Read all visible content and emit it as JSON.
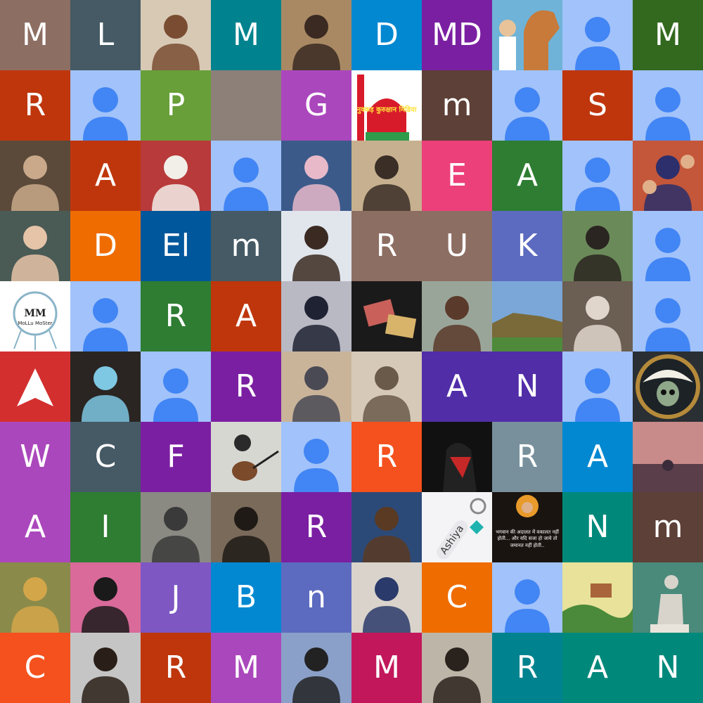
{
  "grid": {
    "tiles": [
      {
        "kind": "letter",
        "text": "M",
        "bg": "#8d6e63"
      },
      {
        "kind": "letter",
        "text": "L",
        "bg": "#455a64"
      },
      {
        "kind": "photo",
        "subject": "person",
        "bg": "#d8c9b5",
        "accent": "#7a4d33"
      },
      {
        "kind": "letter",
        "text": "M",
        "bg": "#00838f"
      },
      {
        "kind": "photo",
        "subject": "person",
        "bg": "#a98963",
        "accent": "#3a2a22"
      },
      {
        "kind": "letter",
        "text": "D",
        "bg": "#0288d1"
      },
      {
        "kind": "letter",
        "text": "MD",
        "bg": "#7b1fa2"
      },
      {
        "kind": "photo",
        "subject": "horse",
        "bg": "#6fb3d8",
        "accent": "#c77a3a"
      },
      {
        "kind": "placeholder",
        "bg": "#a1c2fa",
        "fg": "#4285f4"
      },
      {
        "kind": "letter",
        "text": "M",
        "bg": "#33691e"
      },
      {
        "kind": "letter",
        "text": "R",
        "bg": "#bf360c"
      },
      {
        "kind": "placeholder",
        "bg": "#a1c2fa",
        "fg": "#4285f4"
      },
      {
        "kind": "letter",
        "text": "P",
        "bg": "#689f38"
      },
      {
        "kind": "blank",
        "bg": "#8d8079"
      },
      {
        "kind": "letter",
        "text": "G",
        "bg": "#ab47bc"
      },
      {
        "kind": "logo",
        "text": "नुक्कड़ कुरुक्षान मिडिया",
        "bg": "#ffffff",
        "accent": "#d81b2a"
      },
      {
        "kind": "letter",
        "text": "m",
        "bg": "#5d4037"
      },
      {
        "kind": "placeholder",
        "bg": "#a1c2fa",
        "fg": "#4285f4"
      },
      {
        "kind": "letter",
        "text": "S",
        "bg": "#bf360c"
      },
      {
        "kind": "placeholder",
        "bg": "#a1c2fa",
        "fg": "#4285f4"
      },
      {
        "kind": "photo",
        "subject": "person",
        "bg": "#5b4a3a",
        "accent": "#c9a98a"
      },
      {
        "kind": "letter",
        "text": "A",
        "bg": "#bf360c"
      },
      {
        "kind": "photo",
        "subject": "person",
        "bg": "#b83a3a",
        "accent": "#f2efe9"
      },
      {
        "kind": "placeholder",
        "bg": "#a1c2fa",
        "fg": "#4285f4"
      },
      {
        "kind": "photo",
        "subject": "person",
        "bg": "#3b5a8a",
        "accent": "#e8b9c9"
      },
      {
        "kind": "photo",
        "subject": "person",
        "bg": "#c7b08f",
        "accent": "#3a2e26"
      },
      {
        "kind": "letter",
        "text": "E",
        "bg": "#ec407a"
      },
      {
        "kind": "letter",
        "text": "A",
        "bg": "#2e7d32"
      },
      {
        "kind": "placeholder",
        "bg": "#a1c2fa",
        "fg": "#4285f4"
      },
      {
        "kind": "photo",
        "subject": "people",
        "bg": "#c4563a",
        "accent": "#2c2f6b"
      },
      {
        "kind": "photo",
        "subject": "person",
        "bg": "#4a5a55",
        "accent": "#e6c4a8"
      },
      {
        "kind": "letter",
        "text": "D",
        "bg": "#ef6c00"
      },
      {
        "kind": "letter",
        "text": "El",
        "bg": "#01579b"
      },
      {
        "kind": "letter",
        "text": "m",
        "bg": "#455a64"
      },
      {
        "kind": "photo",
        "subject": "person",
        "bg": "#e0e6ec",
        "accent": "#3a2a22"
      },
      {
        "kind": "letter",
        "text": "R",
        "bg": "#8d6e63"
      },
      {
        "kind": "letter",
        "text": "U",
        "bg": "#8d6e63"
      },
      {
        "kind": "letter",
        "text": "K",
        "bg": "#5c6bc0"
      },
      {
        "kind": "photo",
        "subject": "person",
        "bg": "#6b8a5a",
        "accent": "#2a2520"
      },
      {
        "kind": "placeholder",
        "bg": "#a1c2fa",
        "fg": "#4285f4"
      },
      {
        "kind": "monogram",
        "text": "MM",
        "sub": "MoLLu MoSter",
        "bg": "#ffffff",
        "accent": "#8ab4c8"
      },
      {
        "kind": "placeholder",
        "bg": "#a1c2fa",
        "fg": "#4285f4"
      },
      {
        "kind": "letter",
        "text": "R",
        "bg": "#2e7d32"
      },
      {
        "kind": "letter",
        "text": "A",
        "bg": "#bf360c"
      },
      {
        "kind": "photo",
        "subject": "person",
        "bg": "#b9b9c4",
        "accent": "#1f2233"
      },
      {
        "kind": "photo",
        "subject": "banknotes",
        "bg": "#1a1a1a",
        "accent": "#c9605a"
      },
      {
        "kind": "photo",
        "subject": "person",
        "bg": "#9aa59a",
        "accent": "#5a3a2a"
      },
      {
        "kind": "photo",
        "subject": "ruins",
        "bg": "#7aa7d8",
        "accent": "#7a6a3a"
      },
      {
        "kind": "photo",
        "subject": "person",
        "bg": "#6b5e52",
        "accent": "#e0d6cc"
      },
      {
        "kind": "placeholder",
        "bg": "#a1c2fa",
        "fg": "#4285f4"
      },
      {
        "kind": "arrow",
        "bg": "#d32f2f",
        "fg": "#ffffff"
      },
      {
        "kind": "photo",
        "subject": "person",
        "bg": "#2a2522",
        "accent": "#7ec8e3"
      },
      {
        "kind": "placeholder",
        "bg": "#a1c2fa",
        "fg": "#4285f4"
      },
      {
        "kind": "letter",
        "text": "R",
        "bg": "#7b1fa2"
      },
      {
        "kind": "photo",
        "subject": "person",
        "bg": "#c9b49a",
        "accent": "#4a4a55"
      },
      {
        "kind": "photo",
        "subject": "person",
        "bg": "#d6c9b8",
        "accent": "#6a5a4a"
      },
      {
        "kind": "letter",
        "text": "A",
        "bg": "#512da8"
      },
      {
        "kind": "letter",
        "text": "N",
        "bg": "#512da8"
      },
      {
        "kind": "placeholder",
        "bg": "#a1c2fa",
        "fg": "#4285f4"
      },
      {
        "kind": "pirate",
        "bg": "#2a2f33",
        "accent": "#b58a3a"
      },
      {
        "kind": "letter",
        "text": "W",
        "bg": "#ab47bc"
      },
      {
        "kind": "letter",
        "text": "C",
        "bg": "#455a64"
      },
      {
        "kind": "letter",
        "text": "F",
        "bg": "#7b1fa2"
      },
      {
        "kind": "photo",
        "subject": "guitar",
        "bg": "#d7d7d2",
        "accent": "#2a2a2a"
      },
      {
        "kind": "placeholder",
        "bg": "#a1c2fa",
        "fg": "#4285f4"
      },
      {
        "kind": "letter",
        "text": "R",
        "bg": "#f4511e"
      },
      {
        "kind": "photo",
        "subject": "spider",
        "bg": "#111111",
        "accent": "#c62828"
      },
      {
        "kind": "letter",
        "text": "R",
        "bg": "#78909c"
      },
      {
        "kind": "letter",
        "text": "A",
        "bg": "#0288d1"
      },
      {
        "kind": "photo",
        "subject": "sunset",
        "bg": "#c98a8a",
        "accent": "#3a2c3a"
      },
      {
        "kind": "letter",
        "text": "A",
        "bg": "#ab47bc"
      },
      {
        "kind": "letter",
        "text": "I",
        "bg": "#2e7d32"
      },
      {
        "kind": "photo",
        "subject": "person",
        "bg": "#8a8a82",
        "accent": "#3a3a3a"
      },
      {
        "kind": "photo",
        "subject": "person",
        "bg": "#7a6a5a",
        "accent": "#1f1a16"
      },
      {
        "kind": "letter",
        "text": "R",
        "bg": "#7b1fa2"
      },
      {
        "kind": "photo",
        "subject": "person",
        "bg": "#2c4a78",
        "accent": "#5a3a22"
      },
      {
        "kind": "tag",
        "text": "Ashiya",
        "bg": "#f4f4f6",
        "accent": "#1fb3b0"
      },
      {
        "kind": "quote",
        "text": "भगवान की अदालत में वकालत नहीं होती... और यदि सजा हो जाये तो जमानत नहीं होती..",
        "bg": "#1a1410",
        "accent": "#e89a2a"
      },
      {
        "kind": "letter",
        "text": "N",
        "bg": "#00897b"
      },
      {
        "kind": "letter",
        "text": "m",
        "bg": "#5d4037"
      },
      {
        "kind": "photo",
        "subject": "person",
        "bg": "#8a8a4a",
        "accent": "#d4a64a"
      },
      {
        "kind": "photo",
        "subject": "person",
        "bg": "#d96a9a",
        "accent": "#1a1a1a"
      },
      {
        "kind": "letter",
        "text": "J",
        "bg": "#7e57c2"
      },
      {
        "kind": "letter",
        "text": "B",
        "bg": "#0288d1"
      },
      {
        "kind": "letter",
        "text": "n",
        "bg": "#5c6bc0"
      },
      {
        "kind": "photo",
        "subject": "person",
        "bg": "#d9d3cb",
        "accent": "#2a3a6a"
      },
      {
        "kind": "letter",
        "text": "C",
        "bg": "#ef6c00"
      },
      {
        "kind": "placeholder",
        "bg": "#a1c2fa",
        "fg": "#4285f4"
      },
      {
        "kind": "photo",
        "subject": "village",
        "bg": "#e8e29a",
        "accent": "#4a8a3a"
      },
      {
        "kind": "photo",
        "subject": "statue",
        "bg": "#4a8a7a",
        "accent": "#d8d4cc"
      },
      {
        "kind": "letter",
        "text": "C",
        "bg": "#f4511e"
      },
      {
        "kind": "photo",
        "subject": "person",
        "bg": "#c5c5c5",
        "accent": "#2a1f18"
      },
      {
        "kind": "letter",
        "text": "R",
        "bg": "#bf360c"
      },
      {
        "kind": "letter",
        "text": "M",
        "bg": "#ab47bc"
      },
      {
        "kind": "photo",
        "subject": "person",
        "bg": "#8aa0c8",
        "accent": "#222222"
      },
      {
        "kind": "letter",
        "text": "M",
        "bg": "#c2185b"
      },
      {
        "kind": "photo",
        "subject": "person",
        "bg": "#bdb5a8",
        "accent": "#2a221c"
      },
      {
        "kind": "letter",
        "text": "R",
        "bg": "#00838f"
      },
      {
        "kind": "letter",
        "text": "A",
        "bg": "#00897b"
      },
      {
        "kind": "letter",
        "text": "N",
        "bg": "#00897b"
      }
    ]
  }
}
